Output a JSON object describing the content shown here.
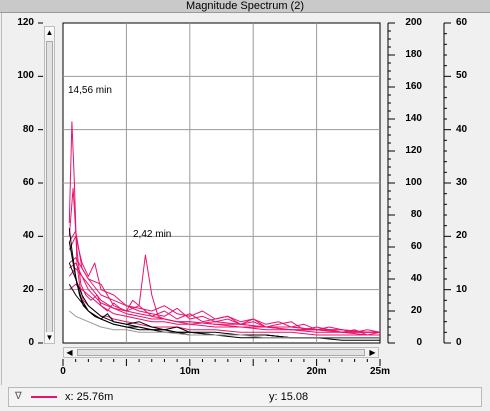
{
  "window": {
    "title": "Magnitude Spectrum (2)"
  },
  "axes": {
    "left_ticks": [
      "120",
      "100",
      "80",
      "60",
      "40",
      "20",
      "0"
    ],
    "mid_ticks": [
      "200",
      "180",
      "160",
      "140",
      "120",
      "100",
      "80",
      "60",
      "40",
      "20",
      "0"
    ],
    "right_ticks": [
      "60",
      "50",
      "40",
      "30",
      "20",
      "10",
      "0"
    ],
    "x_ticks": [
      "0",
      "10m",
      "20m",
      "25m"
    ]
  },
  "annotations": {
    "peak1": "14,56 min",
    "peak2": "2,42 min"
  },
  "status": {
    "legend_symbol": "∇",
    "x_readout": "x: 25.76m",
    "y_readout": "y: 15.08"
  },
  "colors": {
    "trace_primary": "#e8136e",
    "trace_secondary": "#000000",
    "trace_gray": "#9a9a9a",
    "grid": "#9a9a9a"
  },
  "chart_data": {
    "type": "line",
    "xlabel": "",
    "ylabel": "",
    "xlim": [
      0,
      0.025
    ],
    "ylim": [
      0,
      120
    ],
    "ylim_secondary": [
      0,
      200
    ],
    "ylim_tertiary": [
      0,
      60
    ],
    "grid": true,
    "series": [
      {
        "color": "#e8136e",
        "x": [
          0.0005,
          0.0007,
          0.0009,
          0.0011,
          0.0013,
          0.0016,
          0.002,
          0.0025,
          0.003,
          0.0035,
          0.004,
          0.005,
          0.006,
          0.007,
          0.008,
          0.009,
          0.01,
          0.012,
          0.014,
          0.016,
          0.018,
          0.02,
          0.022,
          0.024,
          0.025
        ],
        "y": [
          45,
          83,
          60,
          30,
          22,
          16,
          14,
          12,
          10,
          10,
          9,
          8,
          7,
          6,
          6,
          6,
          5,
          5,
          4,
          4,
          4,
          3,
          3,
          3,
          3
        ]
      },
      {
        "color": "#e8136e",
        "x": [
          0.0005,
          0.0008,
          0.0011,
          0.0014,
          0.0018,
          0.0022,
          0.0027,
          0.003,
          0.0035,
          0.004,
          0.0045,
          0.005,
          0.0055,
          0.006,
          0.0065,
          0.007,
          0.008,
          0.009,
          0.01,
          0.012,
          0.014,
          0.016,
          0.018,
          0.02,
          0.022,
          0.024,
          0.025
        ],
        "y": [
          40,
          58,
          35,
          22,
          18,
          16,
          18,
          14,
          12,
          15,
          13,
          12,
          16,
          14,
          12,
          10,
          9,
          8,
          8,
          7,
          6,
          6,
          5,
          5,
          4,
          4,
          4
        ]
      },
      {
        "color": "#e8136e",
        "x": [
          0.0005,
          0.001,
          0.0015,
          0.002,
          0.003,
          0.004,
          0.005,
          0.006,
          0.0065,
          0.007,
          0.0075,
          0.008,
          0.009,
          0.01,
          0.012,
          0.014,
          0.016,
          0.018,
          0.02,
          0.022,
          0.024,
          0.025
        ],
        "y": [
          38,
          42,
          28,
          24,
          22,
          14,
          12,
          14,
          33,
          18,
          10,
          9,
          8,
          7,
          8,
          7,
          6,
          5,
          5,
          4,
          4,
          4
        ]
      },
      {
        "color": "#e8136e",
        "x": [
          0.0005,
          0.001,
          0.0015,
          0.002,
          0.0025,
          0.003,
          0.004,
          0.005,
          0.006,
          0.007,
          0.008,
          0.009,
          0.01,
          0.011,
          0.012,
          0.013,
          0.014,
          0.015,
          0.016,
          0.018,
          0.02,
          0.022,
          0.024,
          0.025
        ],
        "y": [
          35,
          40,
          30,
          25,
          30,
          20,
          18,
          14,
          12,
          11,
          10,
          13,
          9,
          10,
          8,
          9,
          7,
          9,
          6,
          6,
          5,
          5,
          4,
          4
        ]
      },
      {
        "color": "#e8136e",
        "x": [
          0.0005,
          0.001,
          0.002,
          0.003,
          0.004,
          0.005,
          0.006,
          0.007,
          0.008,
          0.009,
          0.01,
          0.011,
          0.012,
          0.013,
          0.014,
          0.015,
          0.016,
          0.017,
          0.018,
          0.019,
          0.02,
          0.021,
          0.022,
          0.023,
          0.024,
          0.025
        ],
        "y": [
          30,
          32,
          24,
          18,
          16,
          14,
          13,
          12,
          14,
          11,
          10,
          12,
          9,
          10,
          8,
          9,
          7,
          8,
          6,
          7,
          5,
          6,
          5,
          4,
          5,
          4
        ]
      },
      {
        "color": "#e8136e",
        "x": [
          0.0005,
          0.001,
          0.0015,
          0.002,
          0.003,
          0.004,
          0.005,
          0.006,
          0.007,
          0.008,
          0.009,
          0.01,
          0.011,
          0.012,
          0.013,
          0.014,
          0.015,
          0.016,
          0.017,
          0.018,
          0.019,
          0.02,
          0.021,
          0.022,
          0.023,
          0.024,
          0.025
        ],
        "y": [
          28,
          30,
          25,
          20,
          15,
          13,
          12,
          11,
          10,
          12,
          9,
          11,
          8,
          9,
          10,
          7,
          8,
          6,
          7,
          8,
          5,
          6,
          5,
          4,
          5,
          3,
          4
        ]
      },
      {
        "color": "#e8136e",
        "x": [
          0.0005,
          0.001,
          0.002,
          0.003,
          0.004,
          0.005,
          0.006,
          0.007,
          0.008,
          0.009,
          0.01,
          0.012,
          0.014,
          0.016,
          0.018,
          0.02,
          0.022,
          0.024,
          0.025
        ],
        "y": [
          25,
          28,
          22,
          16,
          13,
          11,
          10,
          9,
          9,
          8,
          8,
          7,
          7,
          6,
          6,
          5,
          5,
          4,
          4
        ]
      },
      {
        "color": "#e8136e",
        "x": [
          0.0005,
          0.001,
          0.002,
          0.003,
          0.004,
          0.005,
          0.006,
          0.007,
          0.008,
          0.009,
          0.01,
          0.012,
          0.014,
          0.016,
          0.018,
          0.02,
          0.022,
          0.024,
          0.025
        ],
        "y": [
          20,
          22,
          18,
          14,
          11,
          10,
          9,
          8,
          8,
          7,
          7,
          6,
          6,
          5,
          5,
          4,
          4,
          3,
          3
        ]
      },
      {
        "color": "#000000",
        "x": [
          0.0005,
          0.0007,
          0.001,
          0.0013,
          0.0016,
          0.002,
          0.0025,
          0.003,
          0.0035,
          0.004,
          0.005,
          0.006,
          0.007,
          0.008,
          0.009,
          0.01,
          0.012,
          0.014,
          0.016,
          0.018,
          0.02,
          0.022,
          0.024,
          0.025
        ],
        "y": [
          43,
          35,
          25,
          18,
          14,
          12,
          10,
          9,
          8,
          7,
          6,
          6,
          5,
          5,
          4,
          4,
          3,
          3,
          3,
          2,
          2,
          2,
          2,
          2
        ]
      },
      {
        "color": "#000000",
        "x": [
          0.0005,
          0.0008,
          0.0011,
          0.0015,
          0.002,
          0.0025,
          0.003,
          0.0035,
          0.004,
          0.005,
          0.006,
          0.007,
          0.008,
          0.009,
          0.01,
          0.012,
          0.014,
          0.016,
          0.018,
          0.02,
          0.022,
          0.024,
          0.025
        ],
        "y": [
          38,
          30,
          22,
          16,
          12,
          10,
          9,
          11,
          8,
          7,
          8,
          6,
          5,
          6,
          4,
          4,
          3,
          3,
          2,
          2,
          2,
          2,
          2
        ]
      },
      {
        "color": "#000000",
        "x": [
          0.0005,
          0.001,
          0.0015,
          0.002,
          0.003,
          0.004,
          0.005,
          0.006,
          0.007,
          0.008,
          0.009,
          0.01,
          0.012,
          0.014,
          0.016,
          0.018,
          0.02,
          0.022,
          0.024,
          0.025
        ],
        "y": [
          30,
          24,
          18,
          14,
          10,
          8,
          7,
          6,
          5,
          5,
          4,
          4,
          3,
          3,
          3,
          2,
          2,
          2,
          2,
          2
        ]
      },
      {
        "color": "#000000",
        "x": [
          0.0005,
          0.001,
          0.002,
          0.003,
          0.004,
          0.005,
          0.006,
          0.007,
          0.008,
          0.009,
          0.01,
          0.012,
          0.014,
          0.016,
          0.018,
          0.02,
          0.022,
          0.024,
          0.025
        ],
        "y": [
          22,
          18,
          12,
          9,
          7,
          6,
          5,
          5,
          4,
          4,
          3,
          3,
          2,
          2,
          2,
          2,
          1,
          1,
          1
        ]
      },
      {
        "color": "#9a9a9a",
        "x": [
          0.0005,
          0.001,
          0.002,
          0.003,
          0.004,
          0.005,
          0.006,
          0.008,
          0.01,
          0.012,
          0.014,
          0.016,
          0.018,
          0.02,
          0.022,
          0.024,
          0.025
        ],
        "y": [
          12,
          10,
          8,
          6,
          5,
          5,
          4,
          4,
          3,
          3,
          3,
          2,
          2,
          2,
          2,
          2,
          2
        ]
      }
    ]
  }
}
